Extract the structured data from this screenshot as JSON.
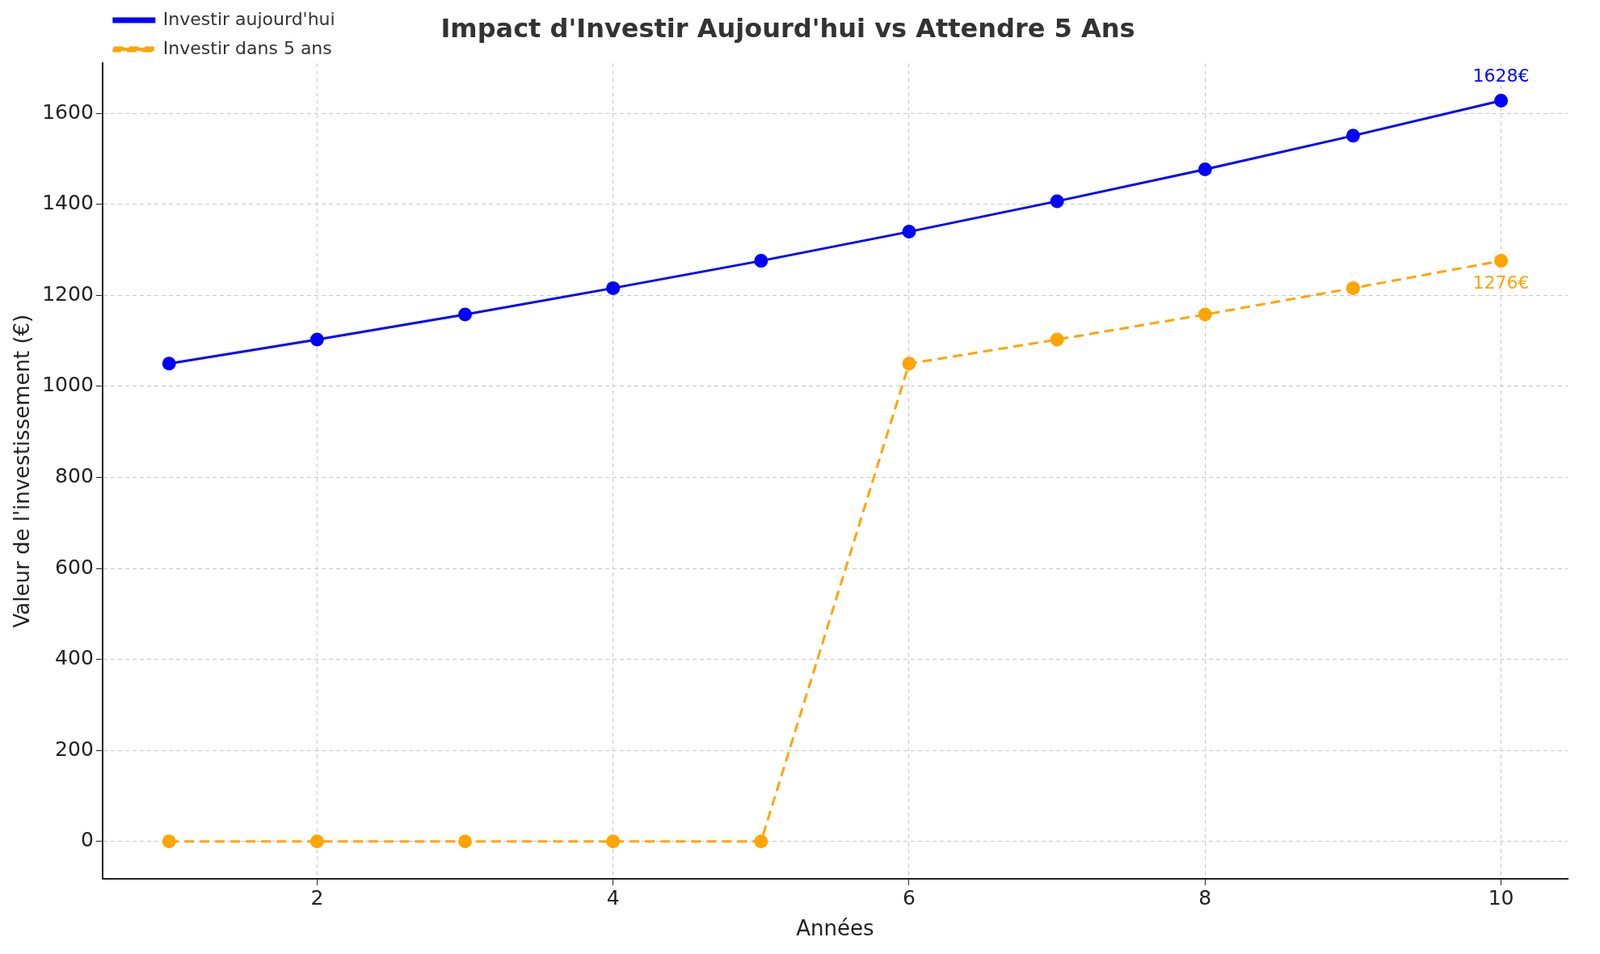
{
  "chart_data": {
    "type": "line",
    "title": "Impact d'Investir Aujourd'hui vs Attendre 5 Ans",
    "x_label": "Années",
    "y_label": "Valeur de l'investissement (€)",
    "x": [
      1,
      2,
      3,
      4,
      5,
      6,
      7,
      8,
      9,
      10
    ],
    "series": [
      {
        "name": "Investir aujourd'hui",
        "color": "#0000ff",
        "marker": "circle",
        "line_style": "solid",
        "values": [
          1050,
          1103,
          1158,
          1216,
          1276,
          1340,
          1407,
          1477,
          1551,
          1628
        ]
      },
      {
        "name": "Investir dans 5 ans",
        "color": "#ffa500",
        "marker": "circle",
        "line_style": "dashed",
        "values": [
          0,
          0,
          0,
          0,
          0,
          1050,
          1103,
          1158,
          1216,
          1276
        ]
      }
    ],
    "xlim": [
      0.55,
      10.45
    ],
    "ylim": [
      -82,
      1710
    ],
    "xticks": [
      2,
      4,
      6,
      8,
      10
    ],
    "yticks": [
      0,
      200,
      400,
      600,
      800,
      1000,
      1200,
      1400,
      1600
    ],
    "grid": true,
    "legend": "upper left",
    "annotations": [
      {
        "text": "1628€",
        "x": 10,
        "y": 1628,
        "color": "#0000ff"
      },
      {
        "text": "1276€",
        "x": 10,
        "y": 1276,
        "color": "#ffa500"
      }
    ]
  }
}
